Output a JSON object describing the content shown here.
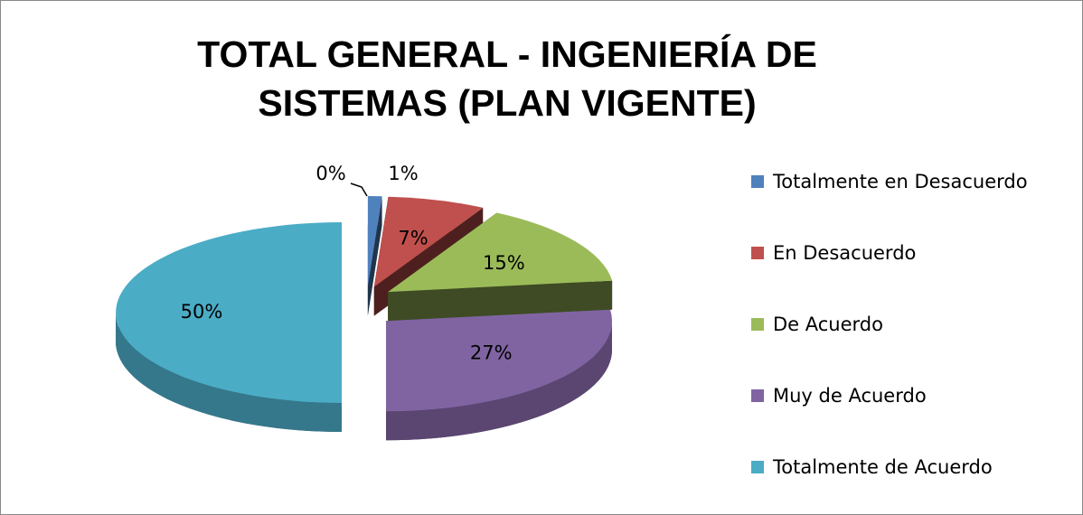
{
  "chart_data": {
    "type": "pie3d",
    "title": "TOTAL GENERAL - INGENIERÍA DE SISTEMAS (PLAN VIGENTE)",
    "categories": [
      "Totalmente en Desacuerdo",
      "En Desacuerdo",
      "De Acuerdo",
      "Muy de Acuerdo",
      "Totalmente de Acuerdo",
      null
    ],
    "values": [
      1,
      7,
      15,
      27,
      50,
      0
    ],
    "value_labels": [
      "1%",
      "7%",
      "15%",
      "27%",
      "50%",
      "0%"
    ],
    "colors": [
      "#4f81bd",
      "#c0504d",
      "#9bbb59",
      "#8064a2",
      "#4bacc6",
      "#f79646"
    ],
    "legend": "right"
  }
}
